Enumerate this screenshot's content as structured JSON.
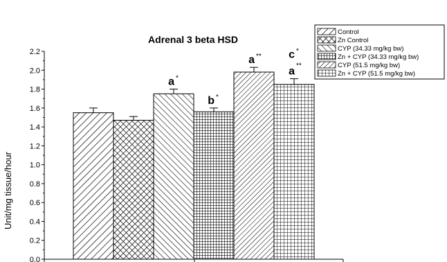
{
  "chart_data": {
    "type": "bar",
    "title": "Adrenal 3 beta HSD",
    "xlabel": "",
    "ylabel": "Unit/mg tissue/hour",
    "ylim": [
      0,
      2.2
    ],
    "yticks": [
      "0.0",
      "0.2",
      "0.4",
      "0.6",
      "0.8",
      "1.0",
      "1.2",
      "1.4",
      "1.6",
      "1.8",
      "2.0",
      "2.2"
    ],
    "grid": false,
    "legend_position": "top-right",
    "categories": [
      "Control",
      "Zn Control",
      "CYP (34.33 mg/kg bw)",
      "Zn + CYP (34.33 mg/kg bw)",
      "CYP (51.5 mg/kg bw)",
      "Zn + CYP (51.5 mg/kg bw)"
    ],
    "values": [
      1.55,
      1.47,
      1.75,
      1.56,
      1.98,
      1.85
    ],
    "errors": [
      0.05,
      0.04,
      0.05,
      0.04,
      0.05,
      0.06
    ],
    "patterns": [
      "diag-forward-sparse",
      "crosshatch-diagonal",
      "diag-backward",
      "grid-dense",
      "diag-forward-dense",
      "grid-square"
    ],
    "annotations": [
      {
        "bar": 2,
        "lines": [
          {
            "letter": "a",
            "stars": "*"
          }
        ]
      },
      {
        "bar": 3,
        "lines": [
          {
            "letter": "b",
            "stars": "*"
          }
        ]
      },
      {
        "bar": 4,
        "lines": [
          {
            "letter": "a",
            "stars": "**"
          }
        ]
      },
      {
        "bar": 5,
        "lines": [
          {
            "letter": "c",
            "stars": "*"
          },
          {
            "letter": "",
            "stars": "**"
          },
          {
            "letter": "a",
            "stars": ""
          }
        ]
      }
    ]
  }
}
